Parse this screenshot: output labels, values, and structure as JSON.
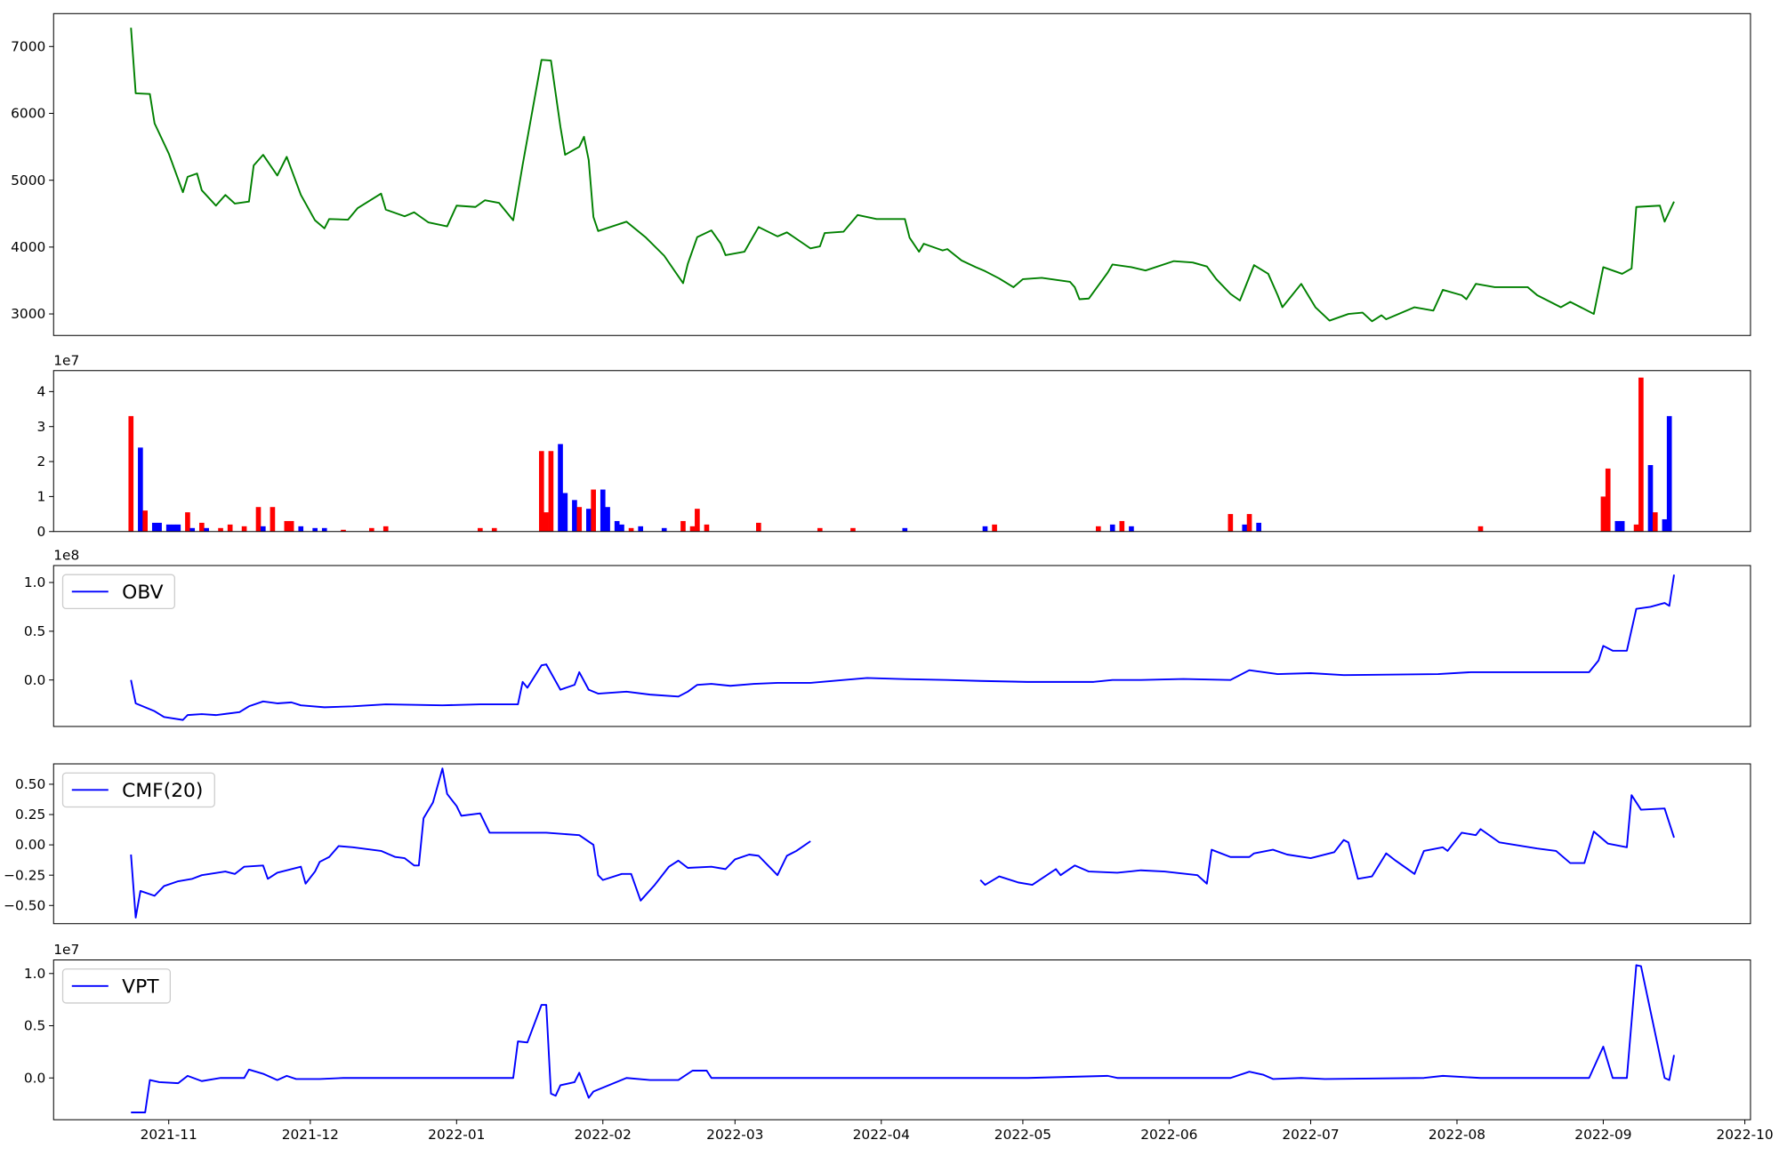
{
  "chart_data": [
    {
      "type": "line",
      "x": [
        -8,
        -7,
        -4,
        -3,
        0,
        3,
        4,
        6,
        7,
        10,
        12,
        14,
        17,
        18,
        20,
        23,
        25,
        28,
        31,
        33,
        34,
        38,
        40,
        45,
        46,
        50,
        52,
        55,
        59,
        61,
        65,
        67,
        70,
        73,
        75,
        79,
        81,
        83,
        84,
        87,
        88,
        89,
        90,
        91,
        97,
        101,
        105,
        109,
        110,
        112,
        115,
        117,
        118,
        122,
        125,
        129,
        131,
        136,
        138,
        139,
        143,
        146,
        150,
        156,
        157,
        159,
        160,
        164,
        165,
        168,
        171,
        173,
        176,
        179,
        181,
        185,
        191,
        192,
        193,
        195,
        199,
        200,
        204,
        207,
        213,
        217,
        220,
        222,
        225,
        227,
        230,
        233,
        235,
        236,
        240,
        243,
        246,
        250,
        253,
        255,
        257,
        258,
        264,
        268,
        270,
        274,
        275,
        277,
        281,
        288,
        290,
        295,
        297,
        302,
        304,
        308,
        310,
        311,
        316,
        317,
        319
      ],
      "series": [
        {
          "color": "#008000",
          "values": [
            7280,
            6300,
            6290,
            5850,
            5400,
            4820,
            5050,
            5100,
            4850,
            4620,
            4780,
            4650,
            4680,
            5220,
            5380,
            5070,
            5350,
            4780,
            4400,
            4280,
            4420,
            4410,
            4580,
            4800,
            4560,
            4460,
            4520,
            4370,
            4310,
            4620,
            4600,
            4700,
            4660,
            4400,
            5230,
            6800,
            6790,
            5800,
            5380,
            5500,
            5650,
            5300,
            4450,
            4240,
            4380,
            4150,
            3870,
            3460,
            3750,
            4150,
            4250,
            4050,
            3880,
            3930,
            4300,
            4160,
            4220,
            3980,
            4010,
            4210,
            4230,
            4480,
            4420,
            4420,
            4140,
            3930,
            4050,
            3950,
            3970,
            3800,
            3700,
            3640,
            3530,
            3400,
            3520,
            3540,
            3480,
            3400,
            3220,
            3230,
            3620,
            3740,
            3700,
            3650,
            3790,
            3770,
            3710,
            3520,
            3300,
            3200,
            3730,
            3600,
            3280,
            3100,
            3450,
            3100,
            2900,
            3000,
            3020,
            2890,
            2980,
            2920,
            3100,
            3050,
            3360,
            3280,
            3220,
            3450,
            3400,
            3400,
            3280,
            3100,
            3180,
            3000,
            3700,
            3600,
            3680,
            4600,
            4620,
            4380,
            4680
          ]
        }
      ],
      "xlim": [
        -24.4,
        335.2
      ],
      "ylim": [
        2678,
        7492
      ],
      "yticks": [
        3000,
        4000,
        5000,
        6000,
        7000
      ]
    },
    {
      "type": "bar",
      "offset_label": "1e7",
      "x": [
        -8,
        -6,
        -5,
        -3,
        -2,
        0,
        1,
        2,
        4,
        5,
        7,
        8,
        11,
        13,
        16,
        19,
        20,
        22,
        25,
        26,
        28,
        31,
        33,
        37,
        43,
        46,
        66,
        69,
        79,
        80,
        81,
        83,
        84,
        86,
        87,
        89,
        90,
        92,
        93,
        95,
        96,
        98,
        100,
        105,
        109,
        111,
        112,
        114,
        125,
        138,
        145,
        156,
        173,
        175,
        197,
        200,
        202,
        204,
        225,
        228,
        229,
        231,
        278,
        304,
        305,
        307,
        308,
        311,
        312,
        314,
        315,
        317,
        318
      ],
      "values": [
        3.3,
        2.4,
        0.6,
        0.25,
        0.25,
        0.2,
        0.2,
        0.2,
        0.55,
        0.1,
        0.25,
        0.1,
        0.1,
        0.2,
        0.15,
        0.7,
        0.15,
        0.7,
        0.3,
        0.3,
        0.15,
        0.1,
        0.1,
        0.05,
        0.1,
        0.15,
        0.1,
        0.1,
        2.3,
        0.55,
        2.3,
        2.5,
        1.1,
        0.9,
        0.7,
        0.65,
        1.2,
        1.2,
        0.7,
        0.3,
        0.2,
        0.1,
        0.15,
        0.1,
        0.3,
        0.15,
        0.65,
        0.2,
        0.25,
        0.1,
        0.1,
        0.1,
        0.15,
        0.2,
        0.15,
        0.2,
        0.3,
        0.15,
        0.5,
        0.2,
        0.5,
        0.25,
        0.15,
        1.0,
        1.8,
        0.3,
        0.3,
        0.2,
        4.4,
        1.9,
        0.55,
        0.35,
        3.3
      ],
      "colors": [
        "red",
        "blue",
        "red",
        "blue",
        "blue",
        "blue",
        "blue",
        "blue",
        "red",
        "blue",
        "red",
        "blue",
        "red",
        "red",
        "red",
        "red",
        "blue",
        "red",
        "red",
        "red",
        "blue",
        "blue",
        "blue",
        "red",
        "red",
        "red",
        "red",
        "red",
        "red",
        "red",
        "red",
        "blue",
        "blue",
        "blue",
        "red",
        "blue",
        "red",
        "blue",
        "blue",
        "blue",
        "blue",
        "red",
        "blue",
        "blue",
        "red",
        "red",
        "red",
        "red",
        "red",
        "red",
        "red",
        "blue",
        "blue",
        "red",
        "red",
        "blue",
        "red",
        "blue",
        "red",
        "blue",
        "red",
        "blue",
        "red",
        "red",
        "red",
        "blue",
        "blue",
        "red",
        "red",
        "blue",
        "red",
        "blue",
        "blue"
      ],
      "xlim": [
        -24.4,
        335.2
      ],
      "ylim": [
        0,
        4.6
      ],
      "yticks": [
        0,
        1,
        2,
        3,
        4
      ]
    },
    {
      "type": "line",
      "offset_label": "1e8",
      "legend": "upper left",
      "x": [
        -8,
        -7,
        -3,
        -1,
        3,
        4,
        7,
        10,
        15,
        17,
        20,
        23,
        26,
        28,
        33,
        39,
        46,
        58,
        66,
        74,
        75,
        76,
        79,
        80,
        83,
        86,
        87,
        89,
        91,
        97,
        102,
        108,
        110,
        112,
        115,
        119,
        124,
        129,
        136,
        143,
        148,
        155,
        165,
        172,
        182,
        196,
        200,
        206,
        215,
        225,
        229,
        235,
        242,
        249,
        269,
        276,
        290,
        301,
        303,
        304,
        306,
        309,
        311,
        314,
        317,
        318,
        319
      ],
      "series": [
        {
          "name": "OBV",
          "color": "#0000ff",
          "values": [
            0.0,
            -0.24,
            -0.32,
            -0.38,
            -0.41,
            -0.36,
            -0.35,
            -0.36,
            -0.33,
            -0.27,
            -0.22,
            -0.24,
            -0.23,
            -0.26,
            -0.28,
            -0.27,
            -0.25,
            -0.26,
            -0.25,
            -0.25,
            -0.02,
            -0.08,
            0.15,
            0.16,
            -0.1,
            -0.05,
            0.08,
            -0.1,
            -0.14,
            -0.12,
            -0.15,
            -0.17,
            -0.12,
            -0.05,
            -0.04,
            -0.06,
            -0.04,
            -0.03,
            -0.03,
            0.0,
            0.02,
            0.01,
            0.0,
            -0.01,
            -0.02,
            -0.02,
            0.0,
            0.0,
            0.01,
            0.0,
            0.1,
            0.06,
            0.07,
            0.05,
            0.06,
            0.08,
            0.08,
            0.08,
            0.2,
            0.35,
            0.3,
            0.3,
            0.73,
            0.75,
            0.79,
            0.76,
            1.08
          ]
        }
      ],
      "xlim": [
        -24.4,
        335.2
      ],
      "ylim": [
        -0.477,
        1.174
      ],
      "yticks": [
        {
          "value": 0,
          "label": "0.0"
        },
        {
          "value": 0.5,
          "label": "0.5"
        },
        {
          "value": 1,
          "label": "1.0"
        }
      ]
    },
    {
      "type": "line",
      "legend": "upper left",
      "x": [
        -8,
        -7,
        -6,
        -3,
        -1,
        2,
        5,
        7,
        12,
        14,
        16,
        20,
        21,
        23,
        28,
        29,
        31,
        32,
        34,
        36,
        39,
        45,
        48,
        50,
        52,
        53,
        54,
        56,
        58,
        59,
        61,
        62,
        66,
        68,
        77,
        80,
        87,
        90,
        91,
        92,
        96,
        98,
        100,
        103,
        106,
        108,
        110,
        115,
        118,
        120,
        123,
        125,
        129,
        131,
        133,
        136,
        150,
        172,
        173,
        176,
        180,
        183,
        188,
        189,
        192,
        195,
        201,
        206,
        211,
        218,
        220,
        221,
        225,
        229,
        230,
        234,
        237,
        242,
        247,
        249,
        250,
        252,
        255,
        258,
        260,
        264,
        266,
        270,
        271,
        274,
        277,
        278,
        282,
        290,
        294,
        297,
        300,
        302,
        305,
        309,
        310,
        312,
        317,
        319
      ],
      "series": [
        {
          "name": "CMF(20)",
          "color": "#0000ff",
          "values": [
            -0.08,
            -0.6,
            -0.38,
            -0.42,
            -0.34,
            -0.3,
            -0.28,
            -0.25,
            -0.22,
            -0.24,
            -0.18,
            -0.17,
            -0.28,
            -0.23,
            -0.18,
            -0.32,
            -0.22,
            -0.14,
            -0.1,
            -0.01,
            -0.02,
            -0.05,
            -0.1,
            -0.11,
            -0.17,
            -0.17,
            0.22,
            0.35,
            0.63,
            0.42,
            0.32,
            0.24,
            0.26,
            0.1,
            0.1,
            0.1,
            0.08,
            0.0,
            -0.25,
            -0.29,
            -0.24,
            -0.24,
            -0.46,
            -0.33,
            -0.18,
            -0.13,
            -0.19,
            -0.18,
            -0.2,
            -0.12,
            -0.08,
            -0.09,
            -0.25,
            -0.09,
            -0.05,
            0.03,
            null,
            -0.29,
            -0.33,
            -0.26,
            -0.31,
            -0.33,
            -0.2,
            -0.25,
            -0.17,
            -0.22,
            -0.23,
            -0.21,
            -0.22,
            -0.25,
            -0.32,
            -0.04,
            -0.1,
            -0.1,
            -0.07,
            -0.04,
            -0.08,
            -0.11,
            -0.06,
            0.04,
            0.02,
            -0.28,
            -0.26,
            -0.07,
            -0.13,
            -0.24,
            -0.05,
            -0.02,
            -0.05,
            0.1,
            0.08,
            0.13,
            0.02,
            -0.03,
            -0.05,
            -0.15,
            -0.15,
            0.11,
            0.01,
            -0.02,
            0.41,
            0.29,
            0.3,
            0.06
          ]
        }
      ],
      "xlim": [
        -24.4,
        335.2
      ],
      "ylim": [
        -0.65,
        0.668
      ],
      "yticks": [
        {
          "value": -0.5,
          "label": "−0.50"
        },
        {
          "value": -0.25,
          "label": "−0.25"
        },
        {
          "value": 0,
          "label": "0.00"
        },
        {
          "value": 0.25,
          "label": "0.25"
        },
        {
          "value": 0.5,
          "label": "0.50"
        }
      ]
    },
    {
      "type": "line",
      "offset_label": "1e7",
      "legend": "upper left",
      "x": [
        -8,
        -5,
        -4,
        -2,
        2,
        4,
        7,
        11,
        16,
        17,
        20,
        23,
        25,
        27,
        32,
        37,
        61,
        73,
        74,
        76,
        79,
        80,
        81,
        82,
        83,
        86,
        87,
        89,
        90,
        97,
        102,
        108,
        111,
        114,
        115,
        134,
        158,
        182,
        199,
        201,
        225,
        229,
        232,
        234,
        240,
        245,
        266,
        270,
        278,
        301,
        304,
        306,
        309,
        311,
        312,
        317,
        318,
        319
      ],
      "series": [
        {
          "name": "VPT",
          "color": "#0000ff",
          "values": [
            -0.33,
            -0.33,
            -0.02,
            -0.04,
            -0.05,
            0.02,
            -0.03,
            0.0,
            0.0,
            0.08,
            0.04,
            -0.02,
            0.02,
            -0.01,
            -0.01,
            0.0,
            0.0,
            0.0,
            0.35,
            0.34,
            0.7,
            0.7,
            -0.15,
            -0.17,
            -0.07,
            -0.04,
            0.05,
            -0.19,
            -0.13,
            0.0,
            -0.02,
            -0.02,
            0.07,
            0.07,
            0.0,
            0.0,
            0.0,
            0.0,
            0.02,
            0.0,
            0.0,
            0.06,
            0.03,
            -0.01,
            0.0,
            -0.01,
            0.0,
            0.02,
            0.0,
            0.0,
            0.3,
            0.0,
            0.0,
            1.08,
            1.07,
            0.0,
            -0.02,
            0.22
          ]
        }
      ],
      "xlim": [
        -24.4,
        335.2
      ],
      "ylim": [
        -0.4,
        1.13
      ],
      "yticks": [
        {
          "value": 0,
          "label": "0.0"
        },
        {
          "value": 0.5,
          "label": "0.5"
        },
        {
          "value": 1,
          "label": "1.0"
        }
      ],
      "xticks": [
        {
          "value": 0,
          "label": "2021-11"
        },
        {
          "value": 30,
          "label": "2021-12"
        },
        {
          "value": 61,
          "label": "2022-01"
        },
        {
          "value": 92,
          "label": "2022-02"
        },
        {
          "value": 120,
          "label": "2022-03"
        },
        {
          "value": 151,
          "label": "2022-04"
        },
        {
          "value": 181,
          "label": "2022-05"
        },
        {
          "value": 212,
          "label": "2022-06"
        },
        {
          "value": 242,
          "label": "2022-07"
        },
        {
          "value": 273,
          "label": "2022-08"
        },
        {
          "value": 304,
          "label": "2022-09"
        },
        {
          "value": 334,
          "label": "2022-10"
        }
      ]
    }
  ]
}
